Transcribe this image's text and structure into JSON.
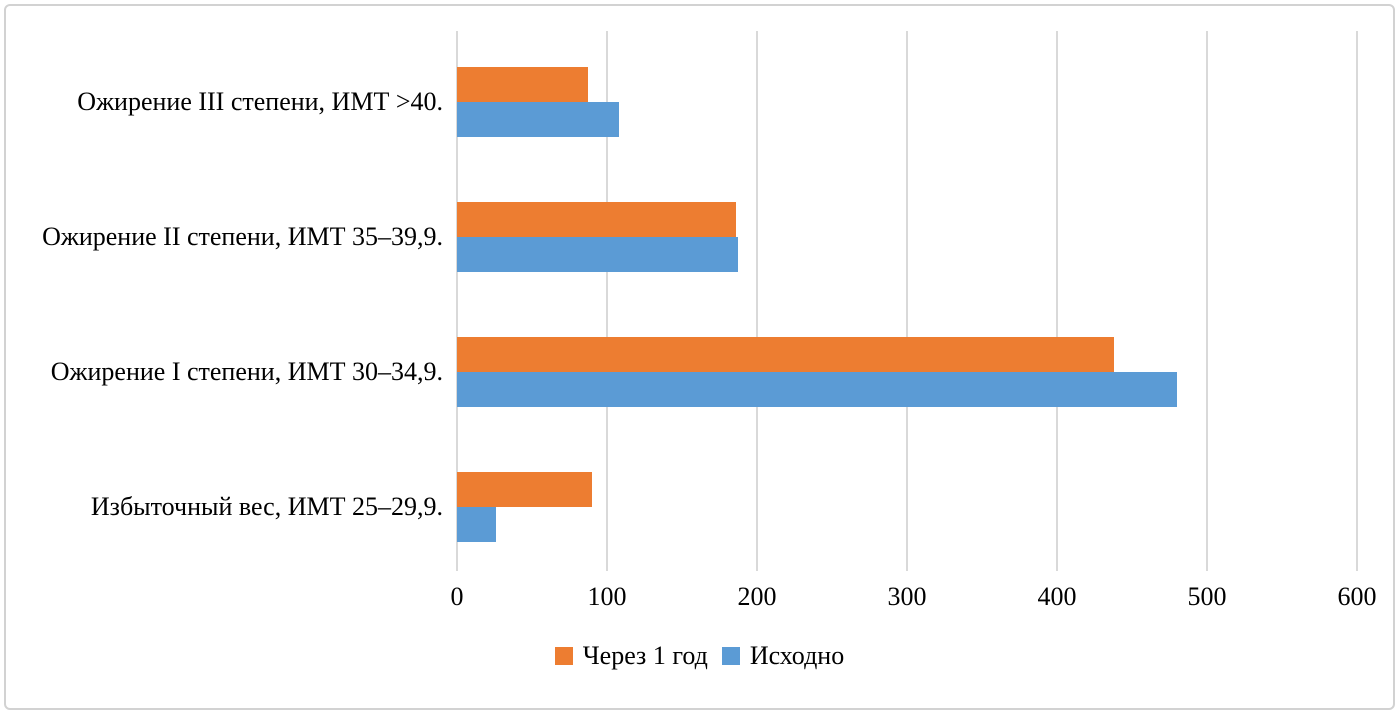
{
  "chart_data": {
    "type": "bar",
    "orientation": "horizontal",
    "title": "",
    "categories": [
      "Ожирение III степени, ИМТ >40.",
      "Ожирение II степени, ИМТ 35–39,9.",
      "Ожирение I степени, ИМТ 30–34,9.",
      "Избыточный вес, ИМТ 25–29,9."
    ],
    "series": [
      {
        "name": "Через 1 год",
        "color": "#ED7D31",
        "values": [
          87,
          186,
          438,
          90
        ]
      },
      {
        "name": "Исходно",
        "color": "#5B9BD5",
        "values": [
          108,
          187,
          480,
          26
        ]
      }
    ],
    "x_ticks": [
      0,
      100,
      200,
      300,
      400,
      500,
      600
    ],
    "xlim": [
      0,
      600
    ],
    "grid": true,
    "gridline_color": "#D9D9D9",
    "border_color": "#D2D2D2",
    "text_color": "#000000",
    "legend_position": "bottom-center"
  }
}
